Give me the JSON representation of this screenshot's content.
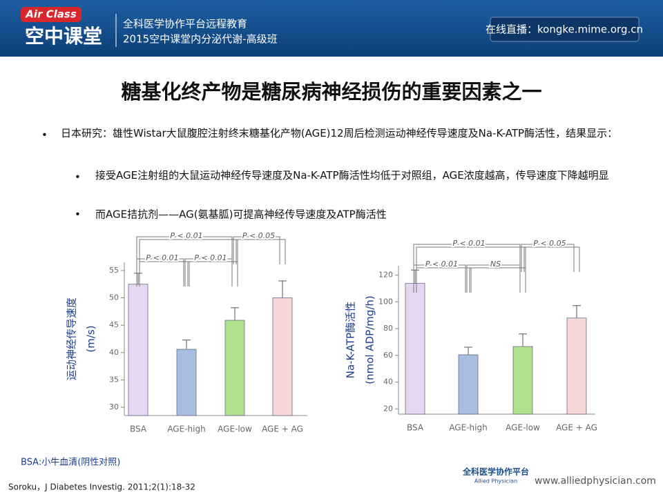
{
  "header": {
    "logo_top": "Air Class",
    "logo_bottom": "空中课堂",
    "line1": "全科医学协作平台远程教育",
    "line2": "2015空中课堂内分泌代谢-高级班",
    "live": "在线直播：kongke.mime.org.cn"
  },
  "title": "糖基化终产物是糖尿病神经损伤的重要因素之一",
  "bullets": [
    "日本研究：雄性Wistar大鼠腹腔注射终末糖基化产物(AGE)12周后检测运动神经传导速度及Na-K-ATP酶活性，结果显示：",
    "接受AGE注射组的大鼠运动神经传导速度及Na-K-ATP酶活性均低于对照组，AGE浓度越高，传导速度下降越明显",
    "而AGE拮抗剂——AG(氨基胍)可提高神经传导速度及ATP酶活性"
  ],
  "chart_data": [
    {
      "type": "bar",
      "ylabel": [
        "运动神经传导速度",
        "(m/s)"
      ],
      "categories": [
        "BSA",
        "AGE-high",
        "AGE-low",
        "AGE + AG"
      ],
      "values": [
        52.5,
        40.6,
        45.9,
        50
      ],
      "errors": [
        2,
        1.7,
        2.3,
        3.1
      ],
      "colors": [
        "#e6d6f0",
        "#a9bfe2",
        "#aee08e",
        "#f7d6d6"
      ],
      "ylim": [
        28.5,
        56.5
      ],
      "yticks": [
        30,
        35,
        40,
        45,
        50,
        55
      ],
      "annotations": [
        "P < 0.01",
        "P < 0.05",
        "P < 0.01",
        "P < 0.01"
      ]
    },
    {
      "type": "bar",
      "ylabel": [
        "Na-K-ATP酶活性",
        "(nmol ADP/mg/h)"
      ],
      "categories": [
        "BSA",
        "AGE-high",
        "AGE-low",
        "AGE + AG"
      ],
      "values": [
        113.8,
        60.4,
        66.6,
        87.9
      ],
      "errors": [
        10,
        5.7,
        9.4,
        9.3
      ],
      "colors": [
        "#e6d6f0",
        "#a9bfe2",
        "#aee08e",
        "#f7d6d6"
      ],
      "ylim": [
        16,
        127
      ],
      "yticks": [
        20,
        40,
        60,
        80,
        100,
        120
      ],
      "annotations": [
        "P < 0.01",
        "P < 0.05",
        "P < 0.01",
        "NS"
      ]
    }
  ],
  "footnote": "BSA:小牛血清(阴性对照)",
  "citation": "Soroku，J Diabetes Investig. 2011;2(1):18-32",
  "footer_logo": {
    "main": "全科医学协作平台",
    "sub": "Allied Physician",
    "url": "www.alliedphysician.com"
  }
}
